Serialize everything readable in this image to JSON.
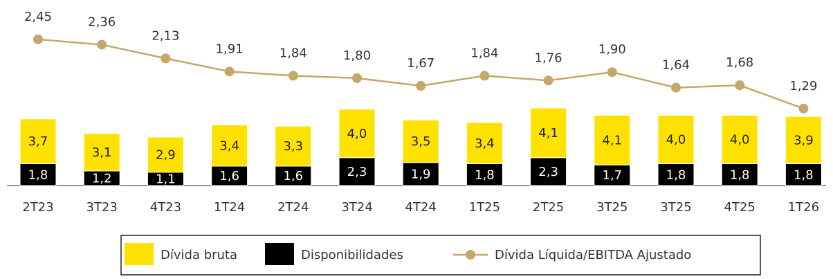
{
  "chart_data": {
    "type": "bar",
    "categories": [
      "2T23",
      "3T23",
      "4T23",
      "1T24",
      "2T24",
      "3T24",
      "4T24",
      "1T25",
      "2T25",
      "3T25",
      "3T25",
      "4T25",
      "1T26"
    ],
    "stacked": true,
    "series": [
      {
        "name": "Dívida bruta",
        "color": "#FFE100",
        "values": [
          3.7,
          3.1,
          2.9,
          3.4,
          3.3,
          4.0,
          3.5,
          3.4,
          4.1,
          4.1,
          4.0,
          4.0,
          3.9
        ],
        "value_labels": [
          "3,7",
          "3,1",
          "2,9",
          "3,4",
          "3,3",
          "4,0",
          "3,5",
          "3,4",
          "4,1",
          "4,1",
          "4,0",
          "4,0",
          "3,9"
        ]
      },
      {
        "name": "Disponibilidades",
        "color": "#000000",
        "values": [
          1.8,
          1.2,
          1.1,
          1.6,
          1.6,
          2.3,
          1.9,
          1.8,
          2.3,
          1.7,
          1.8,
          1.8,
          1.8
        ],
        "value_labels": [
          "1,8",
          "1,2",
          "1,1",
          "1,6",
          "1,6",
          "2,3",
          "1,9",
          "1,8",
          "2,3",
          "1,7",
          "1,8",
          "1,8",
          "1,8"
        ]
      },
      {
        "name": "Dívida Líquida/EBITDA Ajustado",
        "color": "#C5A66B",
        "type": "line",
        "axis": "y2",
        "values": [
          2.45,
          2.36,
          2.13,
          1.91,
          1.84,
          1.8,
          1.67,
          1.84,
          1.76,
          1.9,
          1.64,
          1.68,
          1.29
        ],
        "value_labels": [
          "2,45",
          "2,36",
          "2,13",
          "1,91",
          "1,84",
          "1,80",
          "1,67",
          "1,84",
          "1,76",
          "1,90",
          "1,64",
          "1,68",
          "1,29"
        ]
      }
    ]
  }
}
